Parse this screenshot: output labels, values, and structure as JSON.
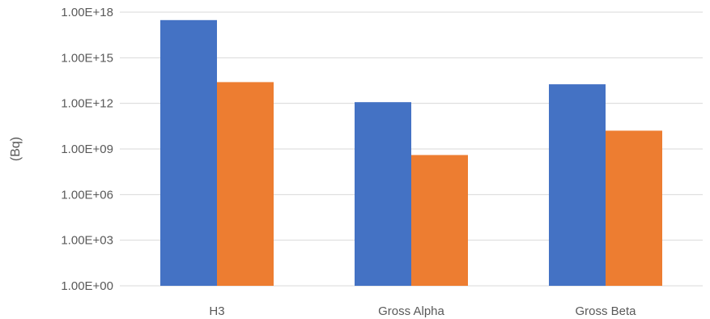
{
  "chart_data": {
    "type": "bar",
    "y_scale": "log10",
    "categories": [
      "H3",
      "Gross Alpha",
      "Gross Beta"
    ],
    "series": [
      {
        "color": "#4472C4",
        "values": [
          3e+17,
          1200000000000.0,
          18000000000000.0
        ]
      },
      {
        "color": "#ED7D31",
        "values": [
          25000000000000.0,
          400000000.0,
          16000000000.0
        ]
      }
    ],
    "ylabel": "(Bq)",
    "ylim": [
      1,
      1e+18
    ],
    "yticks": [
      {
        "value": 1,
        "label": "1.00E+00"
      },
      {
        "value": 1000.0,
        "label": "1.00E+03"
      },
      {
        "value": 1000000.0,
        "label": "1.00E+06"
      },
      {
        "value": 1000000000.0,
        "label": "1.00E+09"
      },
      {
        "value": 1000000000000.0,
        "label": "1.00E+12"
      },
      {
        "value": 1000000000000000.0,
        "label": "1.00E+15"
      },
      {
        "value": 1e+18,
        "label": "1.00E+18"
      }
    ],
    "grid": true,
    "legend": "none"
  }
}
